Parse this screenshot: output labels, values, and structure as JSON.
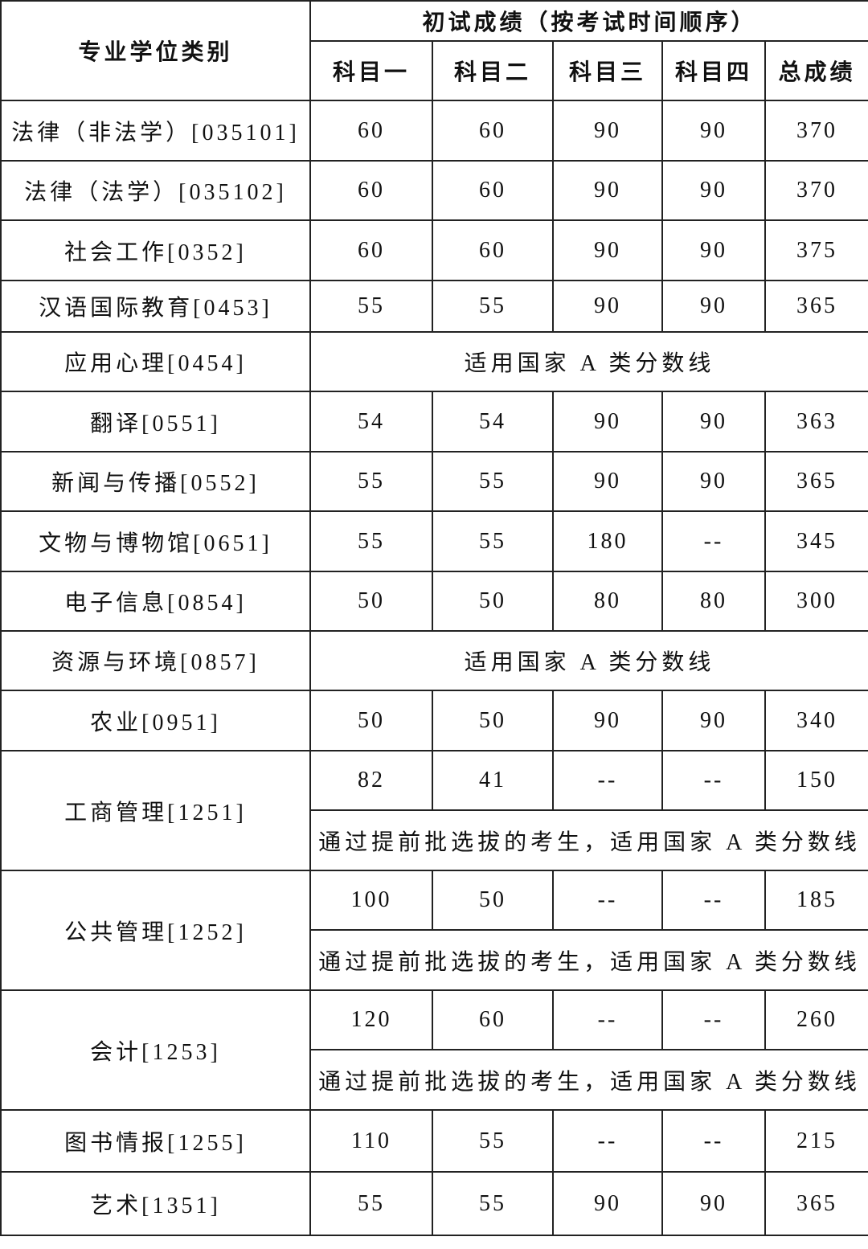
{
  "header": {
    "category_label": "专业学位类别",
    "group_label": "初试成绩（按考试时间顺序）",
    "columns": [
      "科目一",
      "科目二",
      "科目三",
      "科目四",
      "总成绩"
    ]
  },
  "rows": [
    {
      "category": "法律（非法学）[035101]",
      "scores": [
        "60",
        "60",
        "90",
        "90",
        "370"
      ]
    },
    {
      "category": "法律（法学）[035102]",
      "scores": [
        "60",
        "60",
        "90",
        "90",
        "370"
      ]
    },
    {
      "category": "社会工作[0352]",
      "scores": [
        "60",
        "60",
        "90",
        "90",
        "375"
      ]
    },
    {
      "category": "汉语国际教育[0453]",
      "scores": [
        "55",
        "55",
        "90",
        "90",
        "365"
      ]
    },
    {
      "category": "应用心理[0454]",
      "note": "适用国家 A 类分数线"
    },
    {
      "category": "翻译[0551]",
      "scores": [
        "54",
        "54",
        "90",
        "90",
        "363"
      ]
    },
    {
      "category": "新闻与传播[0552]",
      "scores": [
        "55",
        "55",
        "90",
        "90",
        "365"
      ]
    },
    {
      "category": "文物与博物馆[0651]",
      "scores": [
        "55",
        "55",
        "180",
        "--",
        "345"
      ]
    },
    {
      "category": "电子信息[0854]",
      "scores": [
        "50",
        "50",
        "80",
        "80",
        "300"
      ]
    },
    {
      "category": "资源与环境[0857]",
      "note": "适用国家 A 类分数线"
    },
    {
      "category": "农业[0951]",
      "scores": [
        "50",
        "50",
        "90",
        "90",
        "340"
      ]
    },
    {
      "category": "工商管理[1251]",
      "scores": [
        "82",
        "41",
        "--",
        "--",
        "150"
      ],
      "note": "通过提前批选拔的考生，适用国家 A 类分数线"
    },
    {
      "category": "公共管理[1252]",
      "scores": [
        "100",
        "50",
        "--",
        "--",
        "185"
      ],
      "note": "通过提前批选拔的考生，适用国家 A 类分数线"
    },
    {
      "category": "会计[1253]",
      "scores": [
        "120",
        "60",
        "--",
        "--",
        "260"
      ],
      "note": "通过提前批选拔的考生，适用国家 A 类分数线"
    },
    {
      "category": "图书情报[1255]",
      "scores": [
        "110",
        "55",
        "--",
        "--",
        "215"
      ]
    },
    {
      "category": "艺术[1351]",
      "scores": [
        "55",
        "55",
        "90",
        "90",
        "365"
      ]
    }
  ]
}
